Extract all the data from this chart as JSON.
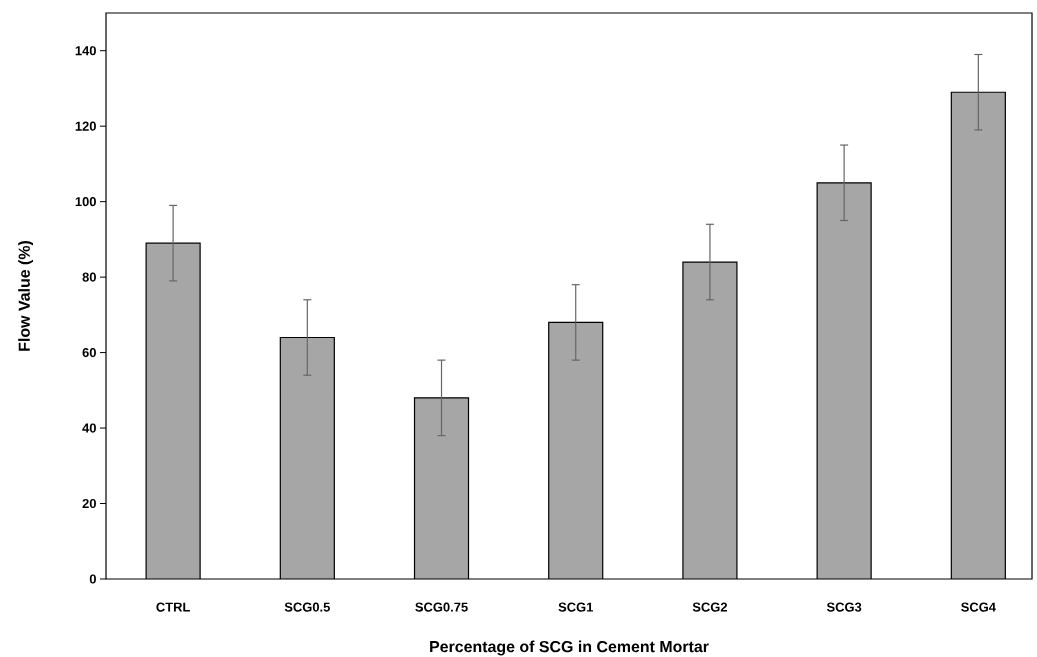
{
  "chart_data": {
    "type": "bar",
    "xlabel": "Percentage of SCG in Cement Mortar",
    "ylabel": "Flow Value (%)",
    "categories": [
      "CTRL",
      "SCG0.5",
      "SCG0.75",
      "SCG1",
      "SCG2",
      "SCG3",
      "SCG4"
    ],
    "values": [
      89,
      64,
      48,
      68,
      84,
      105,
      129
    ],
    "errors": [
      10,
      10,
      10,
      10,
      10,
      10,
      10
    ],
    "color": "#a6a6a6",
    "ylim": [
      0,
      150
    ],
    "yticks": [
      0,
      20,
      40,
      60,
      80,
      100,
      120,
      140
    ],
    "grid": false
  }
}
